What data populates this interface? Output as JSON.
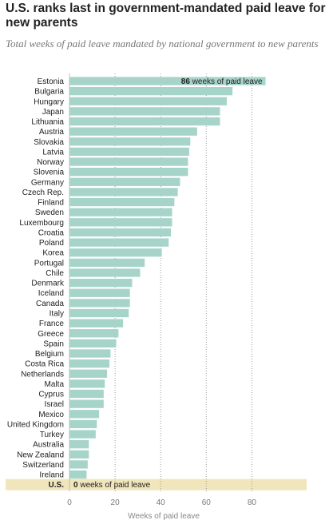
{
  "chart_data": {
    "type": "bar",
    "orientation": "horizontal",
    "title": "U.S. ranks last in government-mandated paid leave for new parents",
    "subtitle": "Total weeks of paid leave mandated by national government to new parents",
    "xlabel": "Weeks of paid leave",
    "xlim": [
      0,
      100
    ],
    "xticks": [
      0,
      20,
      40,
      60,
      80
    ],
    "grid": "vertical-dotted",
    "categories": [
      "Estonia",
      "Bulgaria",
      "Hungary",
      "Japan",
      "Lithuania",
      "Austria",
      "Slovakia",
      "Latvia",
      "Norway",
      "Slovenia",
      "Germany",
      "Czech Rep.",
      "Finland",
      "Sweden",
      "Luxembourg",
      "Croatia",
      "Poland",
      "Korea",
      "Portugal",
      "Chile",
      "Denmark",
      "Iceland",
      "Canada",
      "Italy",
      "France",
      "Greece",
      "Spain",
      "Belgium",
      "Costa Rica",
      "Netherlands",
      "Malta",
      "Cyprus",
      "Israel",
      "Mexico",
      "United Kingdom",
      "Turkey",
      "Australia",
      "New Zealand",
      "Switzerland",
      "Ireland",
      "U.S."
    ],
    "values": [
      86,
      71.5,
      69,
      66,
      66,
      56,
      53,
      52.5,
      52,
      52,
      48.5,
      47.5,
      46,
      45,
      45,
      44.5,
      43.5,
      40.5,
      33,
      31,
      27.5,
      26.5,
      26.5,
      26,
      23.5,
      21.5,
      20.5,
      18,
      17.5,
      16.5,
      15.5,
      15,
      15,
      13,
      12,
      11.5,
      8.5,
      8.5,
      8,
      7.5,
      0
    ],
    "bar_color": "#a6d4c9",
    "highlight_color": "#f0e5bb",
    "highlight_category": "U.S.",
    "annotations": [
      {
        "category": "Estonia",
        "value": "86",
        "text": " weeks of paid leave"
      },
      {
        "category": "U.S.",
        "value": "0",
        "text": " weeks of paid leave"
      }
    ]
  }
}
